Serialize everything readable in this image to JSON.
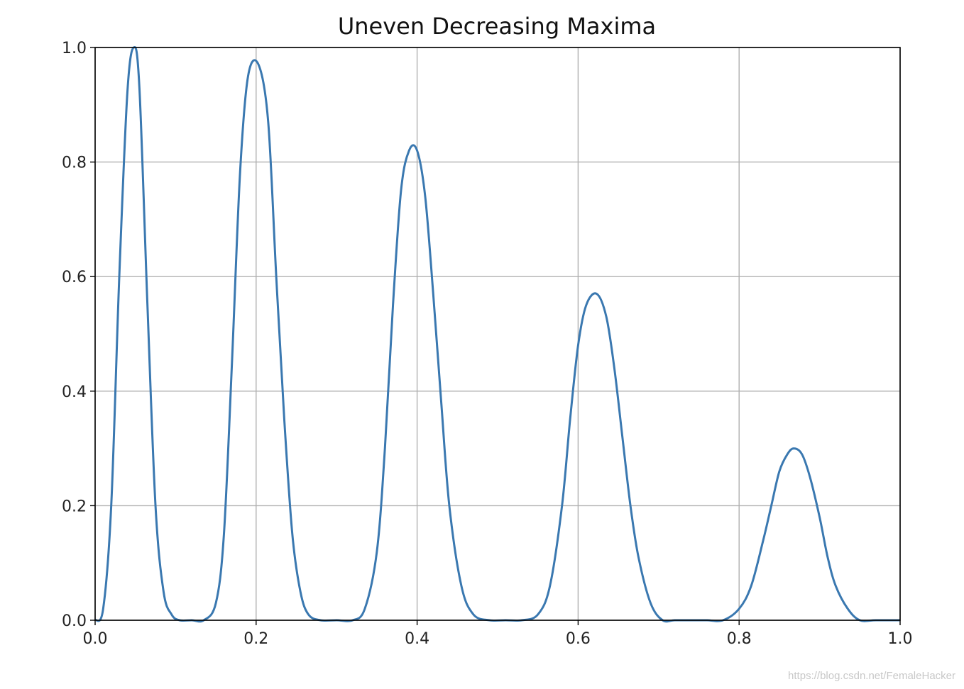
{
  "chart_data": {
    "type": "line",
    "title": "Uneven Decreasing Maxima",
    "xlabel": "",
    "ylabel": "",
    "xlim": [
      0.0,
      1.0
    ],
    "ylim": [
      0.0,
      1.0
    ],
    "xticks": [
      "0.0",
      "0.2",
      "0.4",
      "0.6",
      "0.8",
      "1.0"
    ],
    "yticks": [
      "0.0",
      "0.2",
      "0.4",
      "0.6",
      "0.8",
      "1.0"
    ],
    "grid": true,
    "legend": "none",
    "line_color": "#3a78b0",
    "grid_color": "#b0b0b0",
    "series": [
      {
        "x": [
          0.0,
          0.01,
          0.02,
          0.03,
          0.04,
          0.048,
          0.055,
          0.065,
          0.075,
          0.085,
          0.095,
          0.105,
          0.12,
          0.135,
          0.15,
          0.16,
          0.17,
          0.18,
          0.19,
          0.203,
          0.215,
          0.225,
          0.235,
          0.245,
          0.255,
          0.265,
          0.28,
          0.3,
          0.32,
          0.335,
          0.35,
          0.36,
          0.37,
          0.38,
          0.39,
          0.4,
          0.41,
          0.42,
          0.43,
          0.44,
          0.455,
          0.47,
          0.49,
          0.51,
          0.53,
          0.55,
          0.565,
          0.58,
          0.59,
          0.6,
          0.61,
          0.623,
          0.635,
          0.645,
          0.655,
          0.665,
          0.675,
          0.69,
          0.705,
          0.72,
          0.74,
          0.76,
          0.78,
          0.8,
          0.815,
          0.83,
          0.84,
          0.85,
          0.86,
          0.868,
          0.878,
          0.888,
          0.9,
          0.91,
          0.92,
          0.935,
          0.95,
          0.97,
          1.0
        ],
        "y": [
          0.0,
          0.02,
          0.2,
          0.6,
          0.92,
          1.0,
          0.93,
          0.55,
          0.2,
          0.05,
          0.01,
          0.0,
          0.0,
          0.0,
          0.03,
          0.15,
          0.45,
          0.78,
          0.95,
          0.97,
          0.87,
          0.6,
          0.35,
          0.15,
          0.05,
          0.01,
          0.0,
          0.0,
          0.0,
          0.02,
          0.12,
          0.3,
          0.55,
          0.75,
          0.82,
          0.82,
          0.74,
          0.57,
          0.38,
          0.2,
          0.06,
          0.01,
          0.0,
          0.0,
          0.0,
          0.01,
          0.06,
          0.2,
          0.35,
          0.48,
          0.55,
          0.57,
          0.53,
          0.44,
          0.32,
          0.2,
          0.11,
          0.03,
          0.0,
          0.0,
          0.0,
          0.0,
          0.0,
          0.02,
          0.06,
          0.14,
          0.2,
          0.26,
          0.29,
          0.3,
          0.29,
          0.25,
          0.18,
          0.11,
          0.06,
          0.02,
          0.0,
          0.0,
          0.0
        ]
      }
    ]
  },
  "watermark": "https://blog.csdn.net/FemaleHacker"
}
